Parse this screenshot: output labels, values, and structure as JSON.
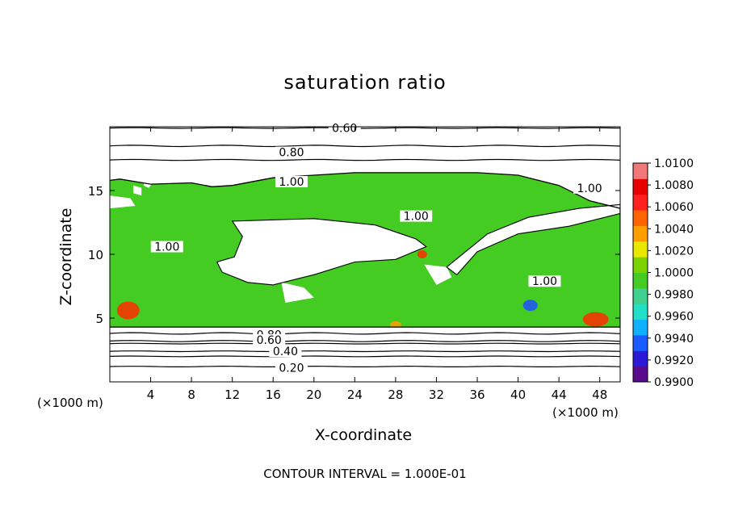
{
  "chart_data": {
    "type": "contour",
    "title": "saturation ratio",
    "xlabel": "X-coordinate",
    "ylabel": "Z-coordinate",
    "x_units": "(×1000 m)",
    "y_units": "(×1000 m)",
    "xlim": [
      0,
      50
    ],
    "ylim": [
      0,
      20
    ],
    "x_ticks": [
      4,
      8,
      12,
      16,
      20,
      24,
      28,
      32,
      36,
      40,
      44,
      48
    ],
    "y_ticks": [
      5,
      10,
      15
    ],
    "contour_interval_text": "CONTOUR INTERVAL = 1.000E-01",
    "contour_labels": [
      {
        "text": "0.60",
        "x": 23.0,
        "z": 19.9
      },
      {
        "text": "0.80",
        "x": 17.8,
        "z": 18.0
      },
      {
        "text": "1.00",
        "x": 17.8,
        "z": 15.7
      },
      {
        "text": "1.00",
        "x": 47.0,
        "z": 15.2
      },
      {
        "text": "1.00",
        "x": 30.0,
        "z": 13.0
      },
      {
        "text": "1.00",
        "x": 5.6,
        "z": 10.6
      },
      {
        "text": "1.00",
        "x": 42.6,
        "z": 7.9
      },
      {
        "text": "0.80",
        "x": 15.6,
        "z": 3.7
      },
      {
        "text": "0.60",
        "x": 15.6,
        "z": 3.3
      },
      {
        "text": "0.40",
        "x": 17.2,
        "z": 2.4
      },
      {
        "text": "0.20",
        "x": 17.8,
        "z": 1.1
      }
    ],
    "contour_levels_z": {
      "0.20": 1.2,
      "0.40": 2.4,
      "0.60": 3.2,
      "0.80": 3.8,
      "upper_0.60": 19.9,
      "upper_0.80": 18.5
    },
    "colorbar": {
      "min": 0.99,
      "max": 1.01,
      "ticks": [
        "1.0100",
        "1.0080",
        "1.0060",
        "1.0040",
        "1.0020",
        "1.0000",
        "0.9980",
        "0.9960",
        "0.9940",
        "0.9920",
        "0.9900"
      ],
      "colors": [
        "#5a0a8c",
        "#2a1ad8",
        "#1a5cff",
        "#10b0ff",
        "#20e0c8",
        "#40d090",
        "#44cc22",
        "#7ad200",
        "#e8e800",
        "#ff9e00",
        "#ff6400",
        "#ff2020",
        "#e80000",
        "#f07878"
      ]
    },
    "fill_regions": [
      {
        "level": "1.0000-1.0020",
        "color": "#44cc22"
      },
      {
        "level": "over 1.0060",
        "color": "#ff2a00"
      },
      {
        "level": "below 0.9960",
        "color": "#2050ff"
      }
    ]
  }
}
